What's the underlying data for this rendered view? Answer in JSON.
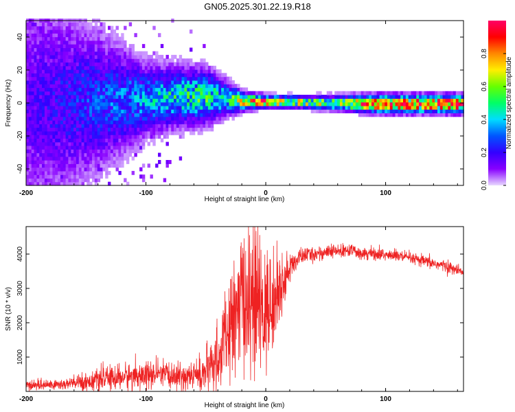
{
  "title": "GN05.2025.301.22.19.R18",
  "colors": {
    "snr_line": "#ee2222",
    "axis": "#000000",
    "grid": "#999999"
  },
  "chart_data": [
    {
      "type": "heatmap",
      "name": "spectrogram",
      "xlabel": "Height of straight line (km)",
      "ylabel": "Frequency (Hz)",
      "xlim": [
        -200,
        165
      ],
      "ylim": [
        -50,
        50
      ],
      "x_ticks": [
        -200,
        -100,
        0,
        100
      ],
      "x_tick_labels": [
        "-200",
        "-100",
        "0",
        "100"
      ],
      "y_ticks": [
        -40,
        -20,
        0,
        20,
        40
      ],
      "y_tick_labels": [
        "-40",
        "-20",
        "0",
        "20",
        "40"
      ],
      "colorbar": {
        "label": "Normalized spectral amplitude",
        "range": [
          0,
          1
        ],
        "ticks": [
          0,
          0.2,
          0.4,
          0.6,
          0.8
        ],
        "tick_labels": [
          "0.0",
          "0.2",
          "0.4",
          "0.6",
          "0.8"
        ],
        "colormap": [
          "#e8d8ff",
          "#8800ff",
          "#3300ff",
          "#0055ff",
          "#00ddff",
          "#00ff66",
          "#66ff00",
          "#ffee00",
          "#ff8800",
          "#ff0000",
          "#ff0066"
        ]
      },
      "ridge": {
        "x": [
          -200,
          -150,
          -100,
          -75,
          -50,
          -35,
          -20,
          0,
          30,
          60,
          90,
          120,
          165
        ],
        "center_freq": [
          0,
          0,
          1,
          3,
          3,
          2,
          0,
          0,
          -0.5,
          -1,
          -1.5,
          -1.5,
          -1.5
        ],
        "spread_hz": [
          40,
          25,
          12,
          10,
          9,
          6,
          3,
          2,
          2,
          2.5,
          3,
          3,
          3
        ],
        "peak_amplitude": [
          0.15,
          0.25,
          0.35,
          0.45,
          0.5,
          0.45,
          0.7,
          0.85,
          0.65,
          0.6,
          0.9,
          0.95,
          0.95
        ]
      }
    },
    {
      "type": "line",
      "name": "snr",
      "xlabel": "Height of straight line (km)",
      "ylabel": "SNR (10 * v/v)",
      "xlim": [
        -200,
        165
      ],
      "ylim": [
        0,
        4800
      ],
      "x_ticks": [
        -200,
        -100,
        0,
        100
      ],
      "x_tick_labels": [
        "-200",
        "-100",
        "0",
        "100"
      ],
      "y_ticks": [
        1000,
        2000,
        3000,
        4000
      ],
      "y_tick_labels": [
        "1000",
        "2000",
        "3000",
        "4000"
      ],
      "envelope": {
        "x": [
          -200,
          -170,
          -150,
          -130,
          -110,
          -90,
          -70,
          -55,
          -45,
          -38,
          -30,
          -25,
          -18,
          -10,
          -5,
          0,
          5,
          10,
          20,
          30,
          50,
          70,
          90,
          110,
          130,
          150,
          165
        ],
        "mean": [
          180,
          200,
          280,
          380,
          450,
          470,
          430,
          470,
          700,
          1100,
          1800,
          2300,
          2700,
          2700,
          2400,
          2300,
          2500,
          2800,
          3600,
          3950,
          4050,
          4100,
          4000,
          3950,
          3800,
          3650,
          3450
        ],
        "noise": [
          90,
          110,
          170,
          220,
          260,
          260,
          240,
          320,
          450,
          700,
          900,
          1100,
          1300,
          1400,
          1300,
          1200,
          900,
          700,
          250,
          150,
          130,
          120,
          120,
          110,
          110,
          110,
          110
        ]
      }
    }
  ]
}
